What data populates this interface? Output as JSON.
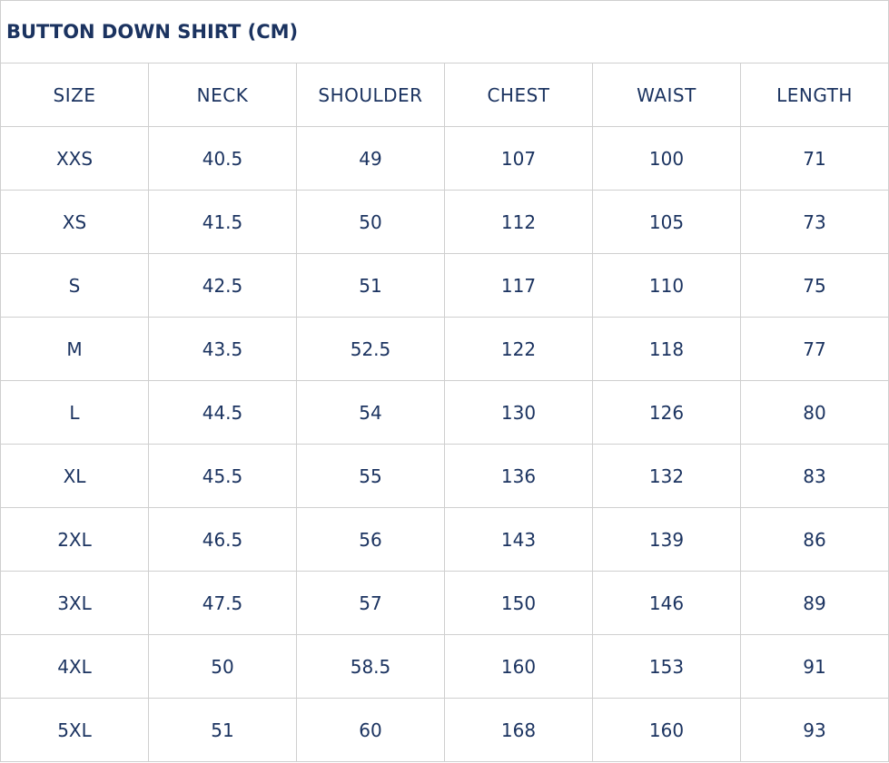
{
  "title": "BUTTON DOWN SHIRT (CM)",
  "headers": [
    "SIZE",
    "NECK",
    "SHOULDER",
    "CHEST",
    "WAIST",
    "LENGTH"
  ],
  "rows": [
    [
      "XXS",
      "40.5",
      "49",
      "107",
      "100",
      "71"
    ],
    [
      "XS",
      "41.5",
      "50",
      "112",
      "105",
      "73"
    ],
    [
      "S",
      "42.5",
      "51",
      "117",
      "110",
      "75"
    ],
    [
      "M",
      "43.5",
      "52.5",
      "122",
      "118",
      "77"
    ],
    [
      "L",
      "44.5",
      "54",
      "130",
      "126",
      "80"
    ],
    [
      "XL",
      "45.5",
      "55",
      "136",
      "132",
      "83"
    ],
    [
      "2XL",
      "46.5",
      "56",
      "143",
      "139",
      "86"
    ],
    [
      "3XL",
      "47.5",
      "57",
      "150",
      "146",
      "89"
    ],
    [
      "4XL",
      "50",
      "58.5",
      "160",
      "153",
      "91"
    ],
    [
      "5XL",
      "51",
      "60",
      "168",
      "160",
      "93"
    ]
  ],
  "colors": {
    "text": "#1b3360",
    "border": "#cfcfcf"
  }
}
